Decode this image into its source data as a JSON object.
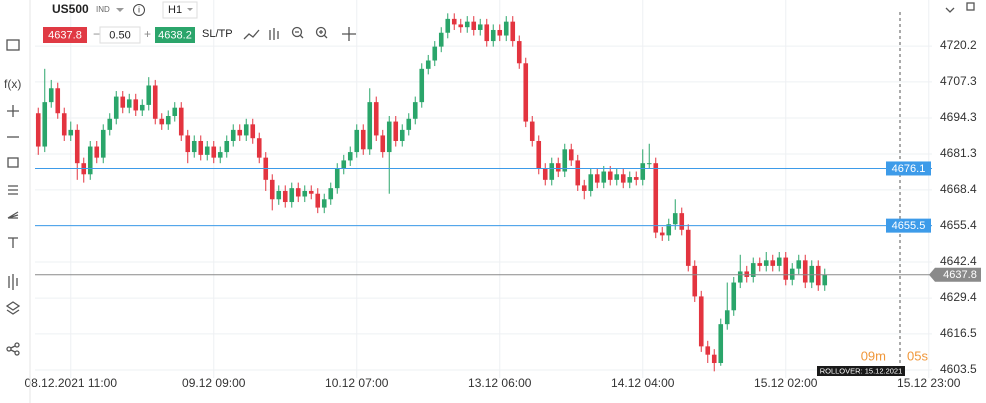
{
  "toolbar": {
    "symbol": "US500",
    "market": "IND",
    "timeframe": "H1",
    "sell": "4637.8",
    "volume": "0.50",
    "buy": "4638.2",
    "sltp": "SL/TP",
    "fx": "f(x)"
  },
  "countdown": {
    "minutes": "09m",
    "seconds": "05s"
  },
  "rollover": "ROLLOVER: 15.12.2021",
  "chart_data": {
    "type": "candlestick",
    "up_color": "#2aa56a",
    "down_color": "#e3343f",
    "xlim": [
      -0.5,
      137.5
    ],
    "xticks": [
      {
        "value": 5,
        "label": "08.12.2021 11:00"
      },
      {
        "value": 27,
        "label": "09.12 09:00"
      },
      {
        "value": 49,
        "label": "10.12 07:00"
      },
      {
        "value": 71,
        "label": "13.12 06:00"
      },
      {
        "value": 93,
        "label": "14.12 04:00"
      },
      {
        "value": 115,
        "label": "15.12 02:00"
      },
      {
        "value": 137,
        "label": "15.12 23:00"
      }
    ],
    "ylim": [
      4600.6,
      4736.8
    ],
    "yticks": [
      4603.5,
      4616.5,
      4629.4,
      4642.4,
      4655.4,
      4668.4,
      4681.3,
      4694.3,
      4707.3,
      4720.2
    ],
    "grid": true,
    "price_lines": [
      {
        "value": 4676.1,
        "color": "#3d9be9"
      },
      {
        "value": 4655.5,
        "color": "#3d9be9"
      },
      {
        "value": 4637.8,
        "color": "#8a8a8a"
      }
    ],
    "open": [
      4696,
      4684,
      4700,
      4705,
      4696,
      4688,
      4690,
      4678,
      4674,
      4684,
      4680,
      4690,
      4694,
      4702,
      4698,
      4701,
      4697,
      4699,
      4706,
      4694,
      4692,
      4695,
      4698,
      4688,
      4682,
      4686,
      4681,
      4684,
      4680,
      4682,
      4686,
      4690,
      4688,
      4692,
      4687,
      4680,
      4672,
      4665,
      4668,
      4664,
      4669,
      4666,
      4668,
      4667,
      4662,
      4665,
      4669,
      4676,
      4679,
      4682,
      4690,
      4683,
      4700,
      4688,
      4682,
      4693,
      4686,
      4690,
      4694,
      4700,
      4712,
      4715,
      4720,
      4725,
      4730,
      4728,
      4727,
      4729,
      4726,
      4728,
      4722,
      4726,
      4724,
      4729,
      4722,
      4714,
      4693,
      4686,
      4676,
      4672,
      4678,
      4675,
      4683,
      4679,
      4670,
      4668,
      4674,
      4671,
      4675,
      4672,
      4674,
      4671,
      4673,
      4672,
      4678,
      4678,
      4653,
      4652,
      4656,
      4660,
      4654,
      4641,
      4630,
      4612,
      4609,
      4606,
      4620,
      4625,
      4635,
      4639,
      4637,
      4642,
      4641,
      4643,
      4641,
      4644,
      4636,
      4640,
      4643,
      4635,
      4641,
      4634
    ],
    "high": [
      4698,
      4712,
      4708,
      4707,
      4698,
      4693,
      4692,
      4680,
      4686,
      4686,
      4692,
      4696,
      4704,
      4704,
      4703,
      4703,
      4701,
      4709,
      4708,
      4696,
      4697,
      4700,
      4700,
      4690,
      4688,
      4688,
      4686,
      4686,
      4684,
      4688,
      4692,
      4692,
      4694,
      4694,
      4689,
      4682,
      4674,
      4670,
      4670,
      4671,
      4671,
      4670,
      4670,
      4669,
      4667,
      4671,
      4678,
      4681,
      4684,
      4692,
      4692,
      4705,
      4702,
      4690,
      4695,
      4695,
      4692,
      4696,
      4702,
      4714,
      4717,
      4722,
      4727,
      4732,
      4732,
      4730,
      4731,
      4731,
      4730,
      4730,
      4728,
      4728,
      4731,
      4731,
      4724,
      4716,
      4695,
      4688,
      4678,
      4680,
      4680,
      4685,
      4685,
      4681,
      4672,
      4676,
      4676,
      4677,
      4677,
      4676,
      4676,
      4675,
      4675,
      4683,
      4685,
      4680,
      4655,
      4658,
      4665,
      4662,
      4656,
      4643,
      4632,
      4614,
      4611,
      4622,
      4635,
      4637,
      4645,
      4641,
      4644,
      4644,
      4646,
      4645,
      4646,
      4646,
      4642,
      4645,
      4645,
      4643,
      4643,
      4640
    ],
    "low": [
      4681,
      4682,
      4698,
      4694,
      4686,
      4686,
      4672,
      4671,
      4672,
      4678,
      4678,
      4688,
      4692,
      4696,
      4696,
      4695,
      4695,
      4697,
      4692,
      4690,
      4690,
      4693,
      4686,
      4678,
      4680,
      4679,
      4679,
      4678,
      4678,
      4680,
      4684,
      4686,
      4686,
      4685,
      4678,
      4668,
      4661,
      4663,
      4662,
      4662,
      4664,
      4664,
      4665,
      4660,
      4660,
      4663,
      4667,
      4674,
      4677,
      4680,
      4681,
      4681,
      4686,
      4680,
      4667,
      4684,
      4684,
      4688,
      4692,
      4698,
      4710,
      4713,
      4718,
      4723,
      4726,
      4725,
      4725,
      4724,
      4724,
      4720,
      4720,
      4722,
      4722,
      4720,
      4712,
      4691,
      4684,
      4674,
      4670,
      4670,
      4673,
      4673,
      4677,
      4668,
      4665,
      4666,
      4669,
      4669,
      4670,
      4670,
      4669,
      4669,
      4670,
      4670,
      4676,
      4651,
      4650,
      4650,
      4654,
      4652,
      4639,
      4628,
      4610,
      4606,
      4603,
      4605,
      4618,
      4623,
      4633,
      4635,
      4635,
      4639,
      4639,
      4639,
      4639,
      4634,
      4634,
      4638,
      4633,
      4633,
      4632,
      4632
    ],
    "close": [
      4684,
      4700,
      4705,
      4696,
      4688,
      4690,
      4678,
      4674,
      4684,
      4680,
      4690,
      4694,
      4702,
      4698,
      4701,
      4697,
      4699,
      4706,
      4694,
      4692,
      4695,
      4698,
      4688,
      4682,
      4686,
      4681,
      4684,
      4680,
      4682,
      4686,
      4690,
      4688,
      4692,
      4687,
      4680,
      4672,
      4665,
      4668,
      4664,
      4669,
      4666,
      4668,
      4667,
      4662,
      4665,
      4669,
      4676,
      4679,
      4682,
      4690,
      4683,
      4700,
      4688,
      4682,
      4693,
      4686,
      4690,
      4694,
      4700,
      4712,
      4715,
      4720,
      4725,
      4730,
      4728,
      4727,
      4729,
      4726,
      4728,
      4722,
      4726,
      4724,
      4729,
      4722,
      4714,
      4693,
      4686,
      4676,
      4672,
      4678,
      4675,
      4683,
      4679,
      4670,
      4668,
      4674,
      4671,
      4675,
      4672,
      4674,
      4671,
      4673,
      4672,
      4678,
      4678,
      4653,
      4652,
      4656,
      4660,
      4654,
      4641,
      4630,
      4612,
      4609,
      4606,
      4620,
      4625,
      4635,
      4639,
      4637,
      4642,
      4641,
      4643,
      4641,
      4644,
      4636,
      4640,
      4643,
      4635,
      4641,
      4634,
      4637.8
    ]
  }
}
